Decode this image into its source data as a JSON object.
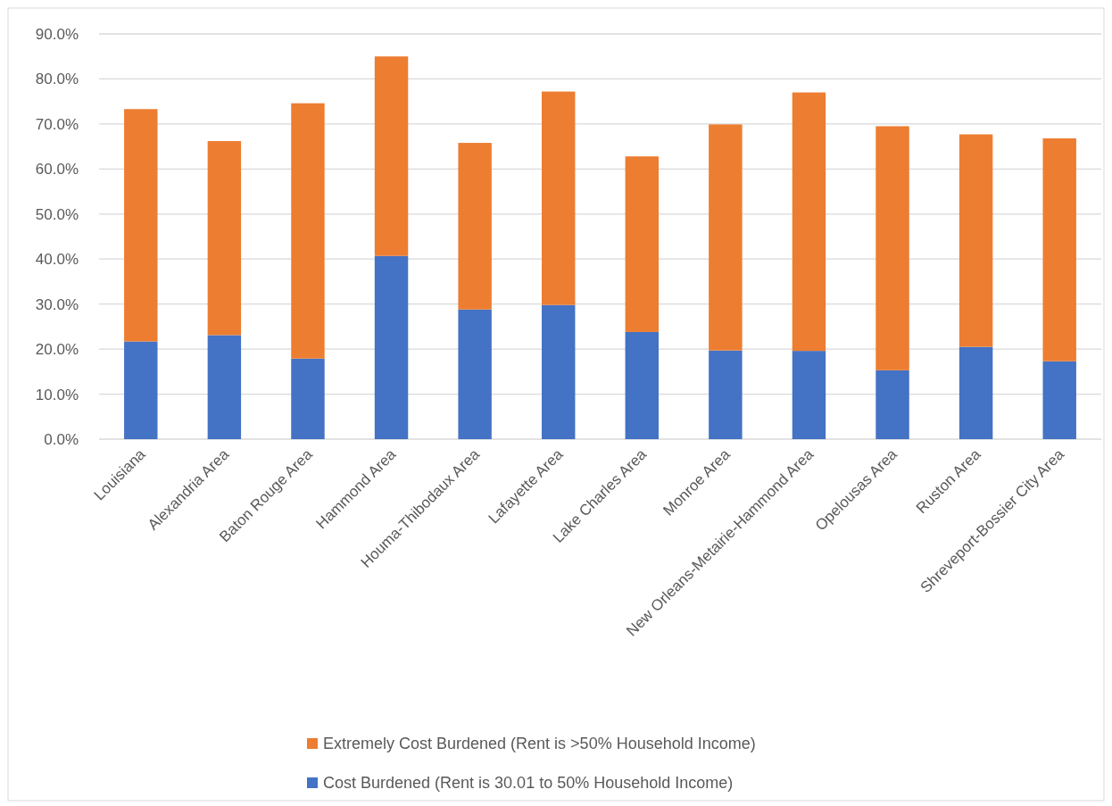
{
  "chart_data": {
    "type": "bar",
    "stacked": true,
    "categories": [
      "Louisiana",
      "Alexandria Area",
      "Baton Rouge Area",
      "Hammond Area",
      "Houma-Thibodaux Area",
      "Lafayette Area",
      "Lake Charles Area",
      "Monroe Area",
      "New Orleans-Metairie-Hammond Area",
      "Opelousas Area",
      "Ruston Area",
      "Shreveport-Bossier City Area"
    ],
    "series": [
      {
        "name": "Cost Burdened (Rent is 30.01 to 50% Household Income)",
        "color": "#4472c4",
        "values": [
          21.7,
          23.1,
          17.9,
          40.7,
          28.8,
          29.8,
          23.8,
          19.7,
          19.6,
          15.3,
          20.5,
          17.3
        ]
      },
      {
        "name": "Extremely Cost Burdened (Rent is >50% Household Income)",
        "color": "#ed7d31",
        "values": [
          51.6,
          43.1,
          56.7,
          44.3,
          37.0,
          47.4,
          39.0,
          50.2,
          57.4,
          54.2,
          47.2,
          49.5
        ]
      }
    ],
    "ylim": [
      0,
      90
    ],
    "yticks": [
      {
        "value": 0,
        "label": "0.0%"
      },
      {
        "value": 10,
        "label": "10.0%"
      },
      {
        "value": 20,
        "label": "20.0%"
      },
      {
        "value": 30,
        "label": "30.0%"
      },
      {
        "value": 40,
        "label": "40.0%"
      },
      {
        "value": 50,
        "label": "50.0%"
      },
      {
        "value": 60,
        "label": "60.0%"
      },
      {
        "value": 70,
        "label": "70.0%"
      },
      {
        "value": 80,
        "label": "80.0%"
      },
      {
        "value": 90,
        "label": "90.0%"
      }
    ],
    "grid": "y",
    "legend": "bottom"
  }
}
